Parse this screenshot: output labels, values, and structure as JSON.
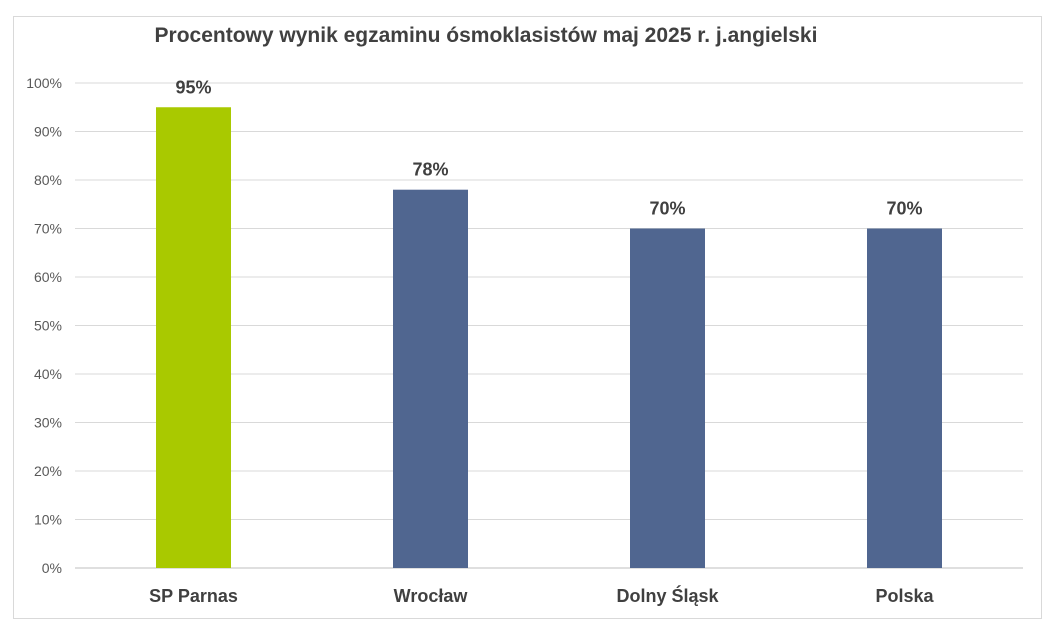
{
  "chart_data": {
    "type": "bar",
    "title": "Procentowy wynik egzaminu ósmoklasistów maj 2025 r. j.angielski",
    "categories": [
      "SP Parnas",
      "Wrocław",
      "Dolny Śląsk",
      "Polska"
    ],
    "values": [
      95,
      78,
      70,
      70
    ],
    "data_labels": [
      "95%",
      "78%",
      "70%",
      "70%"
    ],
    "yticks": [
      0,
      10,
      20,
      30,
      40,
      50,
      60,
      70,
      80,
      90,
      100
    ],
    "ytick_labels": [
      "0%",
      "10%",
      "20%",
      "30%",
      "40%",
      "50%",
      "60%",
      "70%",
      "80%",
      "90%",
      "100%"
    ],
    "ylim": [
      0,
      100
    ],
    "xlabel": "",
    "ylabel": "",
    "grid": true,
    "legend": "none",
    "colors": [
      "#a9c900",
      "#506690",
      "#506690",
      "#506690"
    ],
    "gridline_color": "#d9d9d9"
  }
}
